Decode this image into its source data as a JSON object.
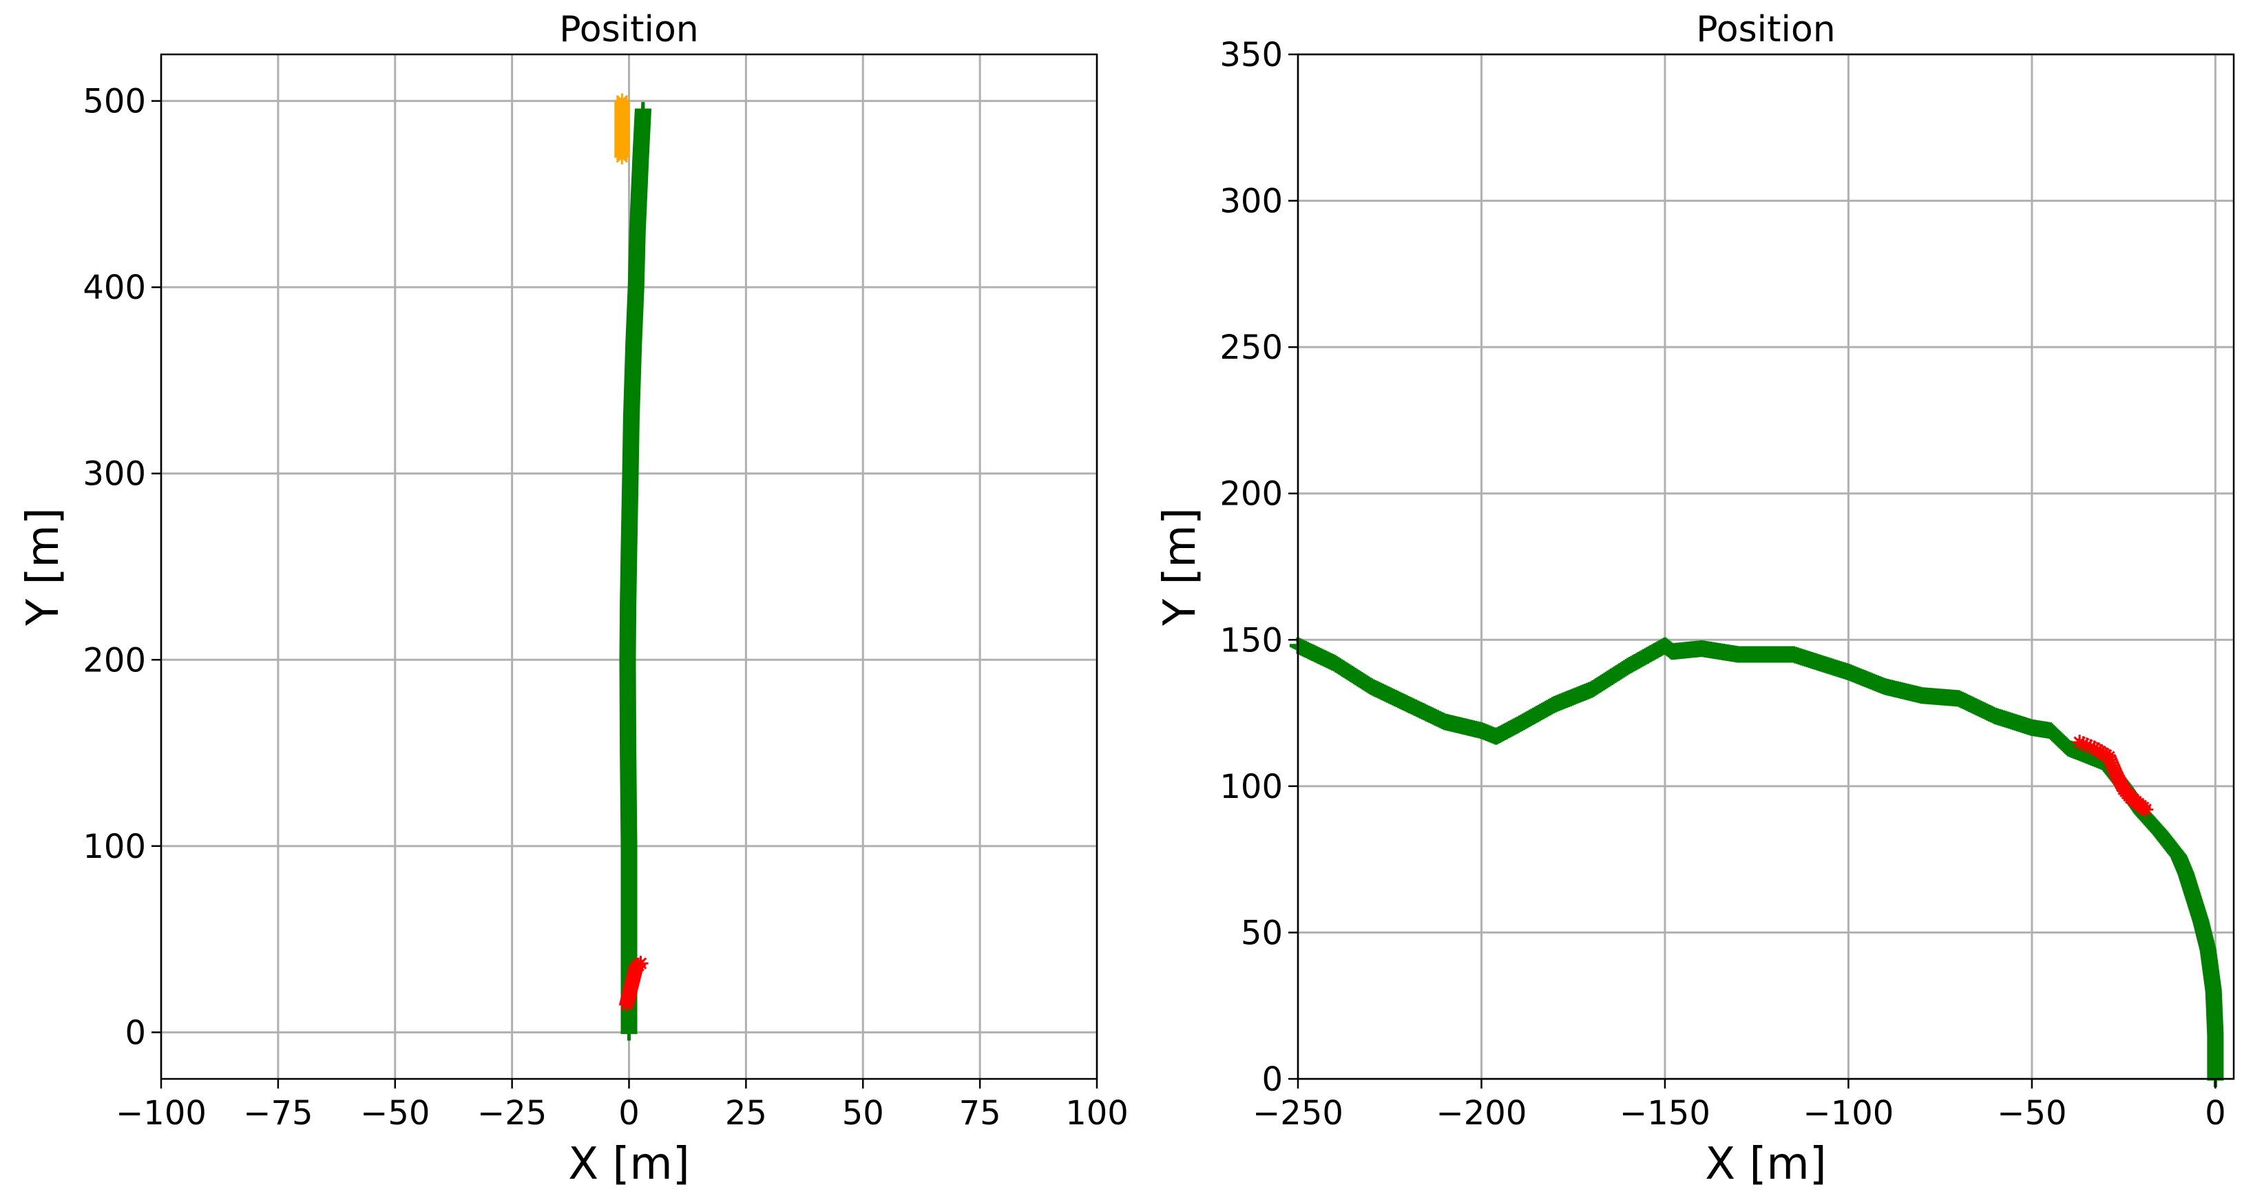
{
  "chart_data": [
    {
      "type": "scatter",
      "title": "Position",
      "xlabel": "X [m]",
      "ylabel": "Y [m]",
      "xlim": [
        -100,
        100
      ],
      "ylim": [
        -25,
        525
      ],
      "xticks": [
        -100,
        -75,
        -50,
        -25,
        0,
        25,
        50,
        75,
        100
      ],
      "yticks": [
        0,
        100,
        200,
        300,
        400,
        500
      ],
      "xtick_labels": [
        "−100",
        "−75",
        "−50",
        "−25",
        "0",
        "25",
        "50",
        "75",
        "100"
      ],
      "ytick_labels": [
        "0",
        "100",
        "200",
        "300",
        "400",
        "500"
      ],
      "grid": true,
      "series": [
        {
          "color": "#008000",
          "marker": "plus",
          "x": [
            0,
            0,
            0,
            -0.2,
            -0.3,
            -0.2,
            0,
            0.3,
            0.5,
            1.0,
            1.5,
            1.8,
            2.5,
            3.0
          ],
          "y": [
            0,
            50,
            100,
            150,
            200,
            230,
            260,
            300,
            330,
            370,
            400,
            430,
            470,
            495
          ]
        },
        {
          "color": "#ff0000",
          "marker": "star",
          "x": [
            -0.5,
            0,
            0.5,
            1.0,
            1.5,
            2.5
          ],
          "y": [
            15,
            20,
            25,
            30,
            35,
            37
          ]
        },
        {
          "color": "#ffa500",
          "marker": "star",
          "x": [
            -1.5,
            -1.5,
            -1.5,
            -1.5
          ],
          "y": [
            470,
            480,
            490,
            500
          ]
        }
      ]
    },
    {
      "type": "scatter",
      "title": "Position",
      "xlabel": "X [m]",
      "ylabel": "Y [m]",
      "xlim": [
        -250,
        5
      ],
      "ylim": [
        0,
        350
      ],
      "xticks": [
        -250,
        -200,
        -150,
        -100,
        -50,
        0
      ],
      "yticks": [
        0,
        50,
        100,
        150,
        200,
        250,
        300,
        350
      ],
      "xtick_labels": [
        "−250",
        "−200",
        "−150",
        "−100",
        "−50",
        "0"
      ],
      "ytick_labels": [
        "0",
        "50",
        "100",
        "150",
        "200",
        "250",
        "300",
        "350"
      ],
      "grid": true,
      "series": [
        {
          "color": "#008000",
          "marker": "plus",
          "x": [
            -250,
            -240,
            -230,
            -220,
            -210,
            -200,
            -196,
            -190,
            -180,
            -170,
            -160,
            -150,
            -148,
            -140,
            -130,
            -115,
            -100,
            -90,
            -80,
            -70,
            -60,
            -50,
            -45,
            -40,
            -30,
            -25,
            -20,
            -15,
            -10,
            -8,
            -6,
            -4,
            -2,
            -0.5,
            0,
            0
          ],
          "y": [
            148,
            142,
            134,
            128,
            122,
            119,
            117,
            121,
            128,
            133,
            141,
            148,
            146,
            147,
            145,
            145,
            139,
            134,
            131,
            130,
            124,
            120,
            119,
            113,
            108,
            100,
            91,
            84,
            76,
            70,
            62,
            54,
            44,
            30,
            15,
            0
          ]
        },
        {
          "color": "#ff0000",
          "marker": "star",
          "x": [
            -37,
            -33,
            -29,
            -27,
            -25,
            -23,
            -21,
            -19
          ],
          "y": [
            115,
            113,
            110,
            104,
            99,
            96,
            94,
            92
          ]
        }
      ]
    }
  ]
}
